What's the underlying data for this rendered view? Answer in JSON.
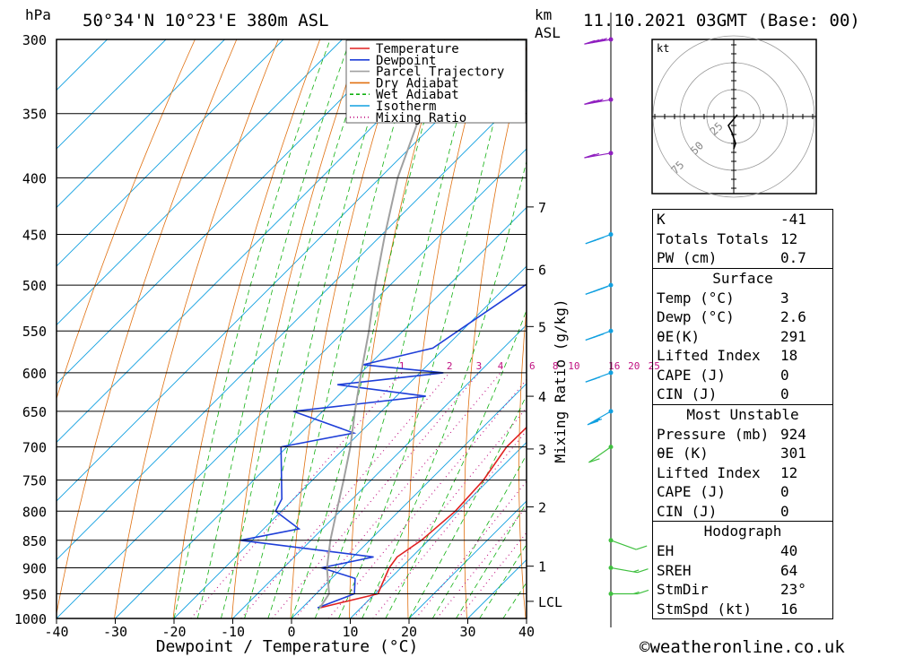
{
  "header": {
    "location": "50°34'N  10°23'E  380m  ASL",
    "datetime": "11.10.2021  03GMT  (Base: 00)",
    "left_unit": "hPa",
    "km_unit": "km",
    "asl_unit": "ASL"
  },
  "chart_data": {
    "type": "skew-t log-p sounding",
    "xlabel": "Dewpoint / Temperature (°C)",
    "ylabel_right": "Mixing Ratio (g/kg)",
    "x_ticks": [
      -40,
      -30,
      -20,
      -10,
      0,
      10,
      20,
      30,
      40
    ],
    "x_range": [
      -40,
      40
    ],
    "pressure_levels": [
      300,
      350,
      400,
      450,
      500,
      550,
      600,
      650,
      700,
      750,
      800,
      850,
      900,
      950,
      1000
    ],
    "pressure_range": [
      300,
      1000
    ],
    "km_ticks": [
      {
        "label": "7",
        "p": 425
      },
      {
        "label": "6",
        "p": 484
      },
      {
        "label": "5",
        "p": 545
      },
      {
        "label": "4",
        "p": 630
      },
      {
        "label": "3",
        "p": 703
      },
      {
        "label": "2",
        "p": 793
      },
      {
        "label": "1",
        "p": 897
      },
      {
        "label": "LCL",
        "p": 965
      }
    ],
    "mixing_ratio_labels": [
      "1",
      "2",
      "3",
      "4",
      "6",
      "8",
      "10",
      "16",
      "20",
      "25"
    ],
    "mixing_ratio_values": [
      1,
      2,
      3,
      4,
      6,
      8,
      10,
      16,
      20,
      25
    ],
    "legend": [
      {
        "name": "Temperature",
        "color": "#e02020",
        "style": "solid"
      },
      {
        "name": "Dewpoint",
        "color": "#1f3fd8",
        "style": "solid"
      },
      {
        "name": "Parcel Trajectory",
        "color": "#a0a0a0",
        "style": "solid"
      },
      {
        "name": "Dry Adiabat",
        "color": "#e07010",
        "style": "solid"
      },
      {
        "name": "Wet Adiabat",
        "color": "#10b010",
        "style": "dashed"
      },
      {
        "name": "Isotherm",
        "color": "#10a0e0",
        "style": "solid"
      },
      {
        "name": "Mixing Ratio",
        "color": "#c01080",
        "style": "dotted"
      }
    ],
    "series": [
      {
        "name": "Temperature",
        "points": [
          [
            978,
            3.0
          ],
          [
            950,
            10.5
          ],
          [
            900,
            8.0
          ],
          [
            880,
            7.5
          ],
          [
            850,
            8.8
          ],
          [
            800,
            9.6
          ],
          [
            750,
            9.1
          ],
          [
            700,
            7.4
          ],
          [
            650,
            7.5
          ],
          [
            600,
            4.2
          ],
          [
            575,
            4.4
          ],
          [
            550,
            2.0
          ],
          [
            500,
            -2.6
          ],
          [
            450,
            -7.2
          ],
          [
            400,
            -13.0
          ],
          [
            350,
            -20.0
          ],
          [
            300,
            -28.0
          ]
        ]
      },
      {
        "name": "Dewpoint",
        "points": [
          [
            978,
            2.6
          ],
          [
            950,
            6.5
          ],
          [
            920,
            4.0
          ],
          [
            900,
            -3.5
          ],
          [
            880,
            3.5
          ],
          [
            850,
            -22.0
          ],
          [
            830,
            -14.0
          ],
          [
            800,
            -21.0
          ],
          [
            780,
            -22.0
          ],
          [
            700,
            -31.0
          ],
          [
            680,
            -21.0
          ],
          [
            650,
            -35.0
          ],
          [
            630,
            -15.0
          ],
          [
            615,
            -32.0
          ],
          [
            600,
            -16.0
          ],
          [
            590,
            -31.0
          ],
          [
            570,
            -22.0
          ],
          [
            500,
            -17.0
          ],
          [
            450,
            -11.0
          ],
          [
            430,
            -22.0
          ],
          [
            400,
            -19.0
          ],
          [
            370,
            -22.0
          ],
          [
            340,
            -26.0
          ],
          [
            300,
            -35.0
          ]
        ]
      },
      {
        "name": "Parcel Trajectory",
        "points": [
          [
            978,
            3.0
          ],
          [
            950,
            2.2
          ],
          [
            900,
            -2.6
          ],
          [
            850,
            -6.7
          ],
          [
            800,
            -10.6
          ],
          [
            750,
            -14.7
          ],
          [
            700,
            -19.2
          ],
          [
            650,
            -24.5
          ],
          [
            600,
            -30.0
          ],
          [
            550,
            -35.8
          ],
          [
            500,
            -42.5
          ],
          [
            450,
            -49.5
          ],
          [
            400,
            -57.0
          ],
          [
            350,
            -64.0
          ],
          [
            300,
            -70.0
          ]
        ]
      }
    ],
    "wind_profile": [
      {
        "p": 300,
        "dir": 260,
        "kt": 35
      },
      {
        "p": 340,
        "dir": 260,
        "kt": 25
      },
      {
        "p": 380,
        "dir": 260,
        "kt": 20
      },
      {
        "p": 450,
        "dir": 250,
        "kt": 25
      },
      {
        "p": 500,
        "dir": 250,
        "kt": 35
      },
      {
        "p": 550,
        "dir": 250,
        "kt": 25
      },
      {
        "p": 600,
        "dir": 250,
        "kt": 20
      },
      {
        "p": 650,
        "dir": 240,
        "kt": 15
      },
      {
        "p": 700,
        "dir": 235,
        "kt": 10
      },
      {
        "p": 850,
        "dir": 110,
        "kt": 10
      },
      {
        "p": 900,
        "dir": 100,
        "kt": 5
      },
      {
        "p": 950,
        "dir": 90,
        "kt": 5
      }
    ],
    "hodograph": {
      "unit": "kt",
      "ring_labels": [
        "25",
        "50",
        "75"
      ]
    }
  },
  "indices": {
    "basic": [
      {
        "label": "K",
        "value": "-41"
      },
      {
        "label": "Totals Totals",
        "value": "12"
      },
      {
        "label": "PW (cm)",
        "value": "0.7"
      }
    ],
    "surface_title": "Surface",
    "surface": [
      {
        "label": "Temp (°C)",
        "value": "3"
      },
      {
        "label": "Dewp (°C)",
        "value": "2.6"
      },
      {
        "label": "θE(K)",
        "value": "291"
      },
      {
        "label": "Lifted Index",
        "value": "18"
      },
      {
        "label": "CAPE (J)",
        "value": "0"
      },
      {
        "label": "CIN (J)",
        "value": "0"
      }
    ],
    "mu_title": "Most Unstable",
    "most_unstable": [
      {
        "label": "Pressure (mb)",
        "value": "924"
      },
      {
        "label": "θE (K)",
        "value": "301"
      },
      {
        "label": "Lifted Index",
        "value": "12"
      },
      {
        "label": "CAPE (J)",
        "value": "0"
      },
      {
        "label": "CIN (J)",
        "value": "0"
      }
    ],
    "hodo_title": "Hodograph",
    "hodograph": [
      {
        "label": "EH",
        "value": "40"
      },
      {
        "label": "SREH",
        "value": "64"
      },
      {
        "label": "StmDir",
        "value": "23°"
      },
      {
        "label": "StmSpd (kt)",
        "value": "16"
      }
    ]
  },
  "copyright": "©weatheronline.co.uk"
}
